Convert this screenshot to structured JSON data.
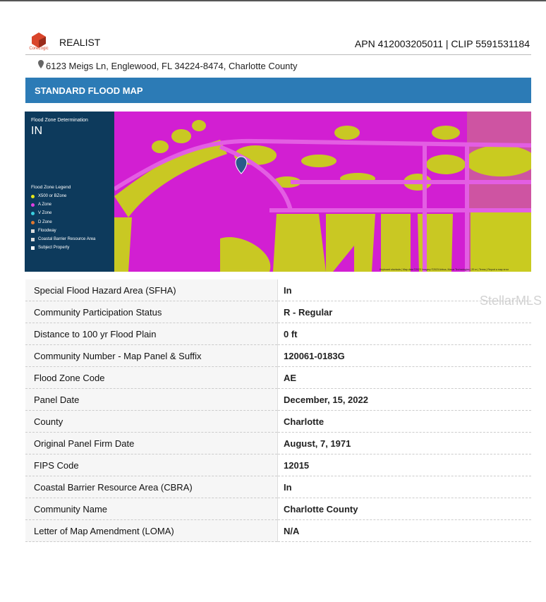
{
  "header": {
    "logo_text": "CoreLogic",
    "brand": "REALIST",
    "ids": "APN 412003205011 | CLIP 5591531184",
    "address": "6123 Meigs Ln, Englewood, FL 34224-8474, Charlotte County"
  },
  "section": {
    "title": "STANDARD FLOOD MAP"
  },
  "map": {
    "determination_label": "Flood Zone Determination",
    "determination": "IN",
    "legend_title": "Flood Zone Legend",
    "legend": [
      "X500 or BZone",
      "A Zone",
      "V Zone",
      "D Zone",
      "Floodway",
      "Coastal Barrier Resource Area",
      "Subject Property"
    ],
    "attribution": "Keyboard shortcuts | Map data ©2023 Imagery ©2023 Airbus, Maxar Technologies | 20 m | Terms | Report a map error"
  },
  "watermark": "StellarMLS",
  "table": {
    "rows": [
      [
        "Special Flood Hazard Area (SFHA)",
        "In"
      ],
      [
        "Community Participation Status",
        "R - Regular"
      ],
      [
        "Distance to 100 yr Flood Plain",
        "0 ft"
      ],
      [
        "Community Number - Map Panel & Suffix",
        "120061-0183G"
      ],
      [
        "Flood Zone Code",
        "AE"
      ],
      [
        "Panel Date",
        "December, 15, 2022"
      ],
      [
        "County",
        "Charlotte"
      ],
      [
        "Original Panel Firm Date",
        "August, 7, 1971"
      ],
      [
        "FIPS Code",
        "12015"
      ],
      [
        "Coastal Barrier Resource Area (CBRA)",
        "In"
      ],
      [
        "Community Name",
        "Charlotte County"
      ],
      [
        "Letter of Map Amendment (LOMA)",
        "N/A"
      ]
    ]
  }
}
